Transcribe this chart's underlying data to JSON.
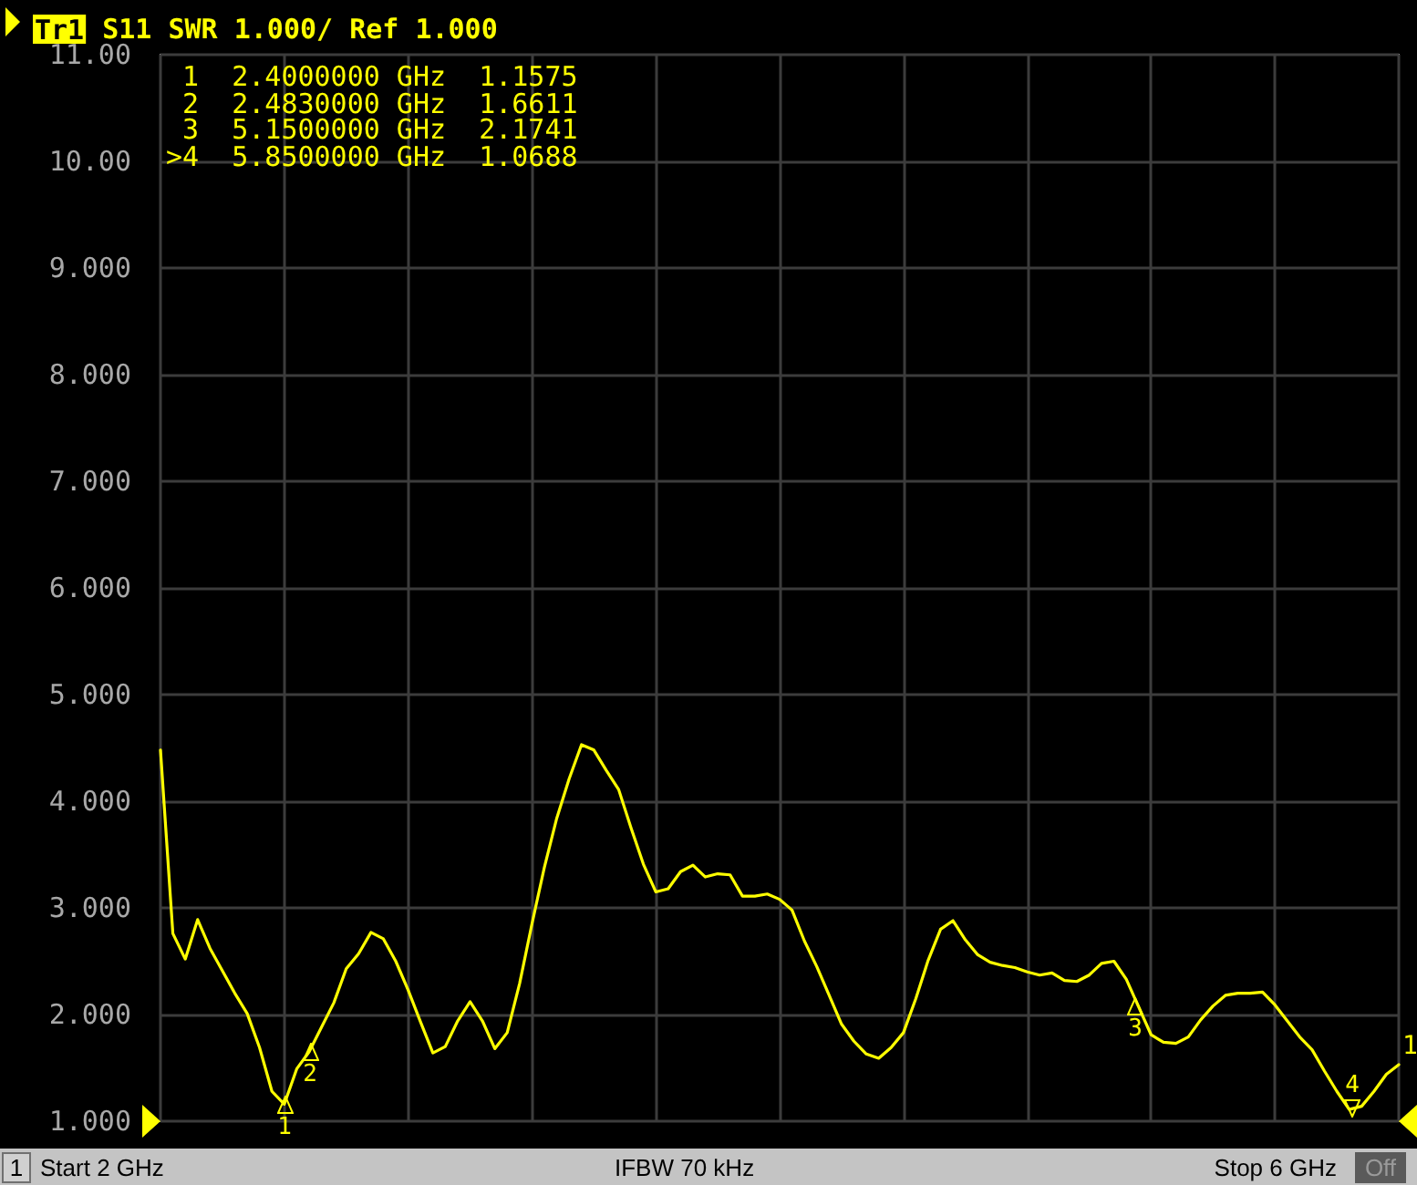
{
  "chart_data": {
    "type": "line",
    "title": "Tr1 S11 SWR 1.000/ Ref 1.000",
    "categories": [
      null,
      null,
      null,
      null,
      null,
      null,
      null,
      null,
      null,
      null,
      null,
      null,
      null,
      null,
      null,
      null,
      null,
      null,
      null,
      null,
      null,
      null,
      null,
      null,
      null,
      null,
      null,
      null,
      null,
      null,
      null,
      null,
      null,
      null,
      null,
      null,
      null,
      null,
      null,
      null,
      null,
      null,
      null,
      null,
      null,
      null,
      null,
      null,
      null,
      null,
      null,
      null,
      null,
      null,
      null,
      null,
      null,
      null,
      null,
      null,
      null,
      null,
      null,
      null,
      null,
      null,
      null,
      null,
      null,
      null,
      null,
      null,
      null,
      null,
      null,
      null,
      null,
      null,
      null,
      null,
      null,
      null,
      null,
      null,
      null,
      null,
      null,
      null,
      null,
      null,
      null,
      null,
      null,
      null,
      null,
      null,
      null,
      null,
      null,
      null,
      null
    ],
    "series": [
      {
        "name": "1",
        "color": "#ffff00",
        "values": [
          4.48,
          2.76,
          2.52,
          2.89,
          2.62,
          2.41,
          2.2,
          2.01,
          1.69,
          1.28,
          1.16,
          1.49,
          1.65,
          1.88,
          2.11,
          2.43,
          2.57,
          2.77,
          2.71,
          2.5,
          2.23,
          1.93,
          1.64,
          1.7,
          1.94,
          2.12,
          1.94,
          1.68,
          1.83,
          2.29,
          2.85,
          3.38,
          3.84,
          4.21,
          4.53,
          4.48,
          4.29,
          4.11,
          3.75,
          3.41,
          3.15,
          3.18,
          3.34,
          3.4,
          3.29,
          3.32,
          3.31,
          3.11,
          3.11,
          3.13,
          3.08,
          2.98,
          2.69,
          2.45,
          2.18,
          1.91,
          1.75,
          1.63,
          1.59,
          1.69,
          1.83,
          2.15,
          2.51,
          2.8,
          2.88,
          2.7,
          2.56,
          2.49,
          2.46,
          2.44,
          2.4,
          2.37,
          2.39,
          2.32,
          2.31,
          2.37,
          2.48,
          2.5,
          2.33,
          2.07,
          1.81,
          1.74,
          1.73,
          1.79,
          1.95,
          2.08,
          2.18,
          2.2,
          2.2,
          2.21,
          2.09,
          1.94,
          1.79,
          1.67,
          1.47,
          1.28,
          1.11,
          1.14,
          1.28,
          1.44,
          1.53
        ]
      }
    ],
    "ylim": [
      1,
      11
    ],
    "yticks": [
      {
        "value": 1,
        "label": "1.000"
      },
      {
        "value": 2,
        "label": "2.000"
      },
      {
        "value": 3,
        "label": "3.000"
      },
      {
        "value": 4,
        "label": "4.000"
      },
      {
        "value": 5,
        "label": "5.000"
      },
      {
        "value": 6,
        "label": "6.000"
      },
      {
        "value": 7,
        "label": "7.000"
      },
      {
        "value": 8,
        "label": "8.000"
      },
      {
        "value": 9,
        "label": "9.000"
      },
      {
        "value": 10,
        "label": "10.00"
      },
      {
        "value": 11,
        "label": "11.00"
      }
    ],
    "grid": true,
    "tick_labels": "y",
    "marker": "none",
    "line_style": "solid",
    "annotations": [
      "1",
      "2",
      "3",
      "4",
      "1 2.4000000 GHz 1.1575",
      "2 2.4830000 GHz 1.6611",
      "3 5.1500000 GHz 2.1741",
      ">4 5.8500000 GHz 1.0688",
      "1",
      "Start 2 GHz",
      "IFBW 70 kHz",
      "Stop 6 GHz",
      "Off"
    ]
  }
}
